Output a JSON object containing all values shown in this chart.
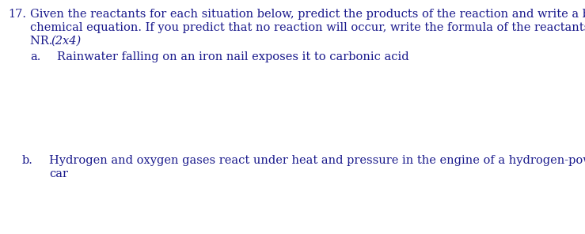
{
  "background_color": "#ffffff",
  "text_color": "#1a1a8c",
  "font_family": "DejaVu Serif",
  "question_number": "17.",
  "main_text_line1": "Given the reactants for each situation below, predict the products of the reaction and write a balanced",
  "main_text_line2": "chemical equation. If you predict that no reaction will occur, write the formula of the reactants, then",
  "main_text_line3_regular": "NR. ",
  "main_text_line3_italic": "(2x4)",
  "part_a_label": "a.",
  "part_a_text": "Rainwater falling on an iron nail exposes it to carbonic acid",
  "part_b_label": "b.",
  "part_b_line1": "Hydrogen and oxygen gases react under heat and pressure in the engine of a hydrogen-powered",
  "part_b_line2": "car",
  "font_size_main": 10.5,
  "fig_width": 7.39,
  "fig_height": 2.96,
  "dpi": 100
}
